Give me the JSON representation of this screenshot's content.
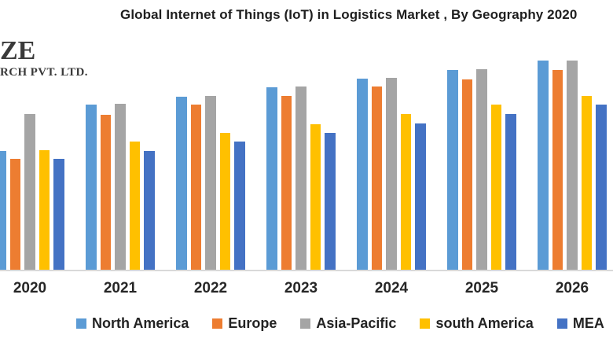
{
  "logo": {
    "line1": "ZE",
    "line2": "RCH PVT. LTD."
  },
  "chart_data": {
    "type": "bar",
    "title": "Global Internet of Things (IoT) in Logistics Market , By Geography 2020",
    "xlabel": "",
    "ylabel": "",
    "categories": [
      "2020",
      "2021",
      "2022",
      "2023",
      "2024",
      "2025",
      "2026"
    ],
    "series": [
      {
        "name": "North America",
        "color": "#5B9BD5",
        "values": [
          151,
          210,
          220,
          232,
          243,
          254,
          266
        ]
      },
      {
        "name": "Europe",
        "color": "#ED7D31",
        "values": [
          141,
          197,
          210,
          221,
          233,
          242,
          254
        ]
      },
      {
        "name": "Asia-Pacific",
        "color": "#A5A5A5",
        "values": [
          198,
          211,
          221,
          233,
          244,
          255,
          266
        ]
      },
      {
        "name": "south America",
        "color": "#FFC000",
        "values": [
          152,
          163,
          174,
          185,
          198,
          210,
          221
        ]
      },
      {
        "name": "MEA",
        "color": "#4472C4",
        "values": [
          141,
          151,
          163,
          174,
          186,
          198,
          210
        ]
      }
    ],
    "value_units": "relative bar height (no y-axis or gridlines visible in chart)",
    "ylim": [
      0,
      285
    ],
    "grid": false,
    "legend_position": "bottom",
    "axis_line_color": "#d9d9d9"
  }
}
